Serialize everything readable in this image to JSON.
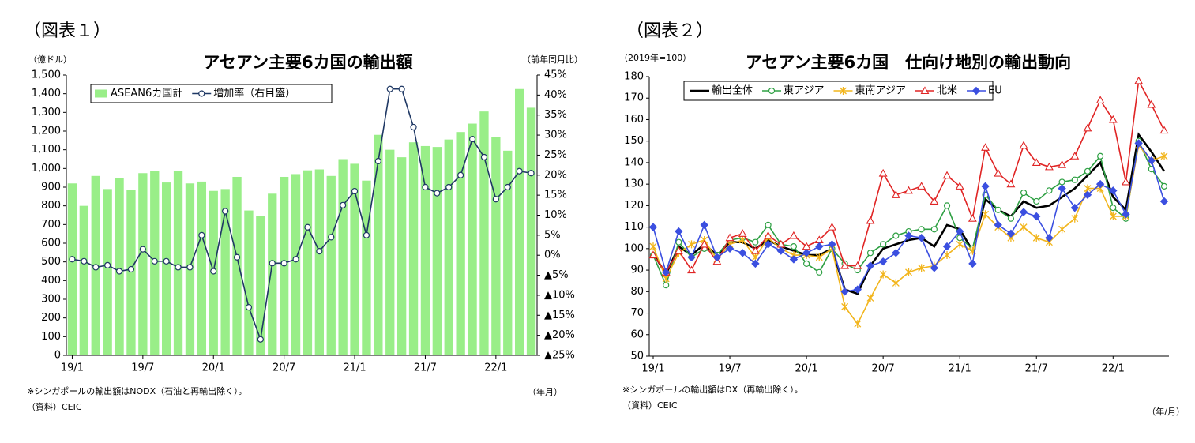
{
  "chart_data": [
    {
      "type": "combo",
      "figure_label": "（図表１）",
      "title": "アセアン主要6カ国の輸出額",
      "y_label": "（億ドル）",
      "y2_label": "（前年同月比）",
      "x_label": "（年月）",
      "notes": "※シンガポールの輸出額はNODX（石油と再輸出除く）。",
      "source": "（資料）CEIC",
      "grid": false,
      "legend": "top-left",
      "categories": [
        "19/1",
        null,
        null,
        null,
        null,
        null,
        "19/7",
        null,
        null,
        null,
        null,
        null,
        "20/1",
        null,
        null,
        null,
        null,
        null,
        "20/7",
        null,
        null,
        null,
        null,
        null,
        "21/1",
        null,
        null,
        null,
        null,
        null,
        "21/7",
        null,
        null,
        null,
        null,
        null,
        "22/1",
        null,
        null,
        null
      ],
      "ylim": [
        0,
        1500
      ],
      "yticks": [
        0,
        100,
        200,
        300,
        400,
        500,
        600,
        700,
        800,
        900,
        {
          "value": 1000,
          "label": "1,000"
        },
        {
          "value": 1100,
          "label": "1,100"
        },
        {
          "value": 1200,
          "label": "1,200"
        },
        {
          "value": 1300,
          "label": "1,300"
        },
        {
          "value": 1400,
          "label": "1,400"
        },
        {
          "value": 1500,
          "label": "1,500"
        }
      ],
      "y2lim": [
        -25,
        45
      ],
      "y2ticks": [
        {
          "value": -25,
          "label": "▲25%"
        },
        {
          "value": -20,
          "label": "▲20%"
        },
        {
          "value": -15,
          "label": "▲15%"
        },
        {
          "value": -10,
          "label": "▲10%"
        },
        {
          "value": -5,
          "label": "▲5%"
        },
        {
          "value": 0,
          "label": "0%"
        },
        {
          "value": 5,
          "label": "5%"
        },
        {
          "value": 10,
          "label": "10%"
        },
        {
          "value": 15,
          "label": "15%"
        },
        {
          "value": 20,
          "label": "20%"
        },
        {
          "value": 25,
          "label": "25%"
        },
        {
          "value": 30,
          "label": "30%"
        },
        {
          "value": 35,
          "label": "35%"
        },
        {
          "value": 40,
          "label": "40%"
        },
        {
          "value": 45,
          "label": "45%"
        }
      ],
      "series": [
        {
          "name": "ASEAN6カ国計",
          "type": "bar",
          "color": "#99ee88",
          "values": [
            920,
            800,
            960,
            890,
            950,
            885,
            975,
            985,
            925,
            985,
            920,
            930,
            880,
            890,
            955,
            775,
            745,
            865,
            955,
            970,
            990,
            995,
            960,
            1050,
            1025,
            935,
            1180,
            1100,
            1060,
            1140,
            1120,
            1115,
            1155,
            1195,
            1240,
            1305,
            1170,
            1095,
            1425,
            1325
          ]
        },
        {
          "name": "増加率（右目盛）",
          "type": "line",
          "axis": "y2",
          "color": "#1f3864",
          "marker": "circle",
          "values": [
            -1,
            -1.5,
            -3,
            -2.5,
            -4,
            -3.5,
            1.5,
            -1.5,
            -1.5,
            -3,
            -3,
            5,
            -4,
            11,
            -0.5,
            -13,
            -21,
            -2,
            -2,
            -1,
            7,
            1,
            4.5,
            12.5,
            16,
            5,
            23.5,
            41.5,
            41.5,
            32,
            17,
            15.5,
            17,
            20,
            29,
            24.5,
            14,
            17,
            21,
            20.5
          ]
        }
      ]
    },
    {
      "type": "line",
      "figure_label": "（図表２）",
      "title": "アセアン主要6カ国　仕向け地別の輸出動向",
      "y_label": "（2019年=100）",
      "x_label": "（年/月）",
      "notes": "※シンガポールの輸出額はDX（再輸出除く）。",
      "source": "（資料）CEIC",
      "grid": false,
      "legend": "top-left",
      "categories": [
        "19/1",
        null,
        null,
        null,
        null,
        null,
        "19/7",
        null,
        null,
        null,
        null,
        null,
        "20/1",
        null,
        null,
        null,
        null,
        null,
        "20/7",
        null,
        null,
        null,
        null,
        null,
        "21/1",
        null,
        null,
        null,
        null,
        null,
        "21/7",
        null,
        null,
        null,
        null,
        null,
        "22/1",
        null,
        null,
        null,
        null
      ],
      "ylim": [
        50,
        180
      ],
      "yticks": [
        50,
        60,
        70,
        80,
        90,
        100,
        110,
        120,
        130,
        140,
        150,
        160,
        170,
        180
      ],
      "series": [
        {
          "name": "輸出全体",
          "color": "#000000",
          "marker": "none",
          "values": [
            98,
            88,
            101,
            97,
            102,
            97,
            103,
            103,
            100,
            104,
            101,
            99,
            97,
            97,
            100,
            81,
            79,
            92,
            100,
            102,
            104,
            105,
            101,
            111,
            109,
            99,
            123,
            118,
            115,
            122,
            119,
            120,
            124,
            128,
            134,
            140,
            124,
            118,
            153,
            145,
            136
          ]
        },
        {
          "name": "東アジア",
          "color": "#2ea043",
          "marker": "circle",
          "values": [
            97,
            83,
            103,
            96,
            100,
            97,
            104,
            105,
            103,
            111,
            102,
            101,
            93,
            89,
            100,
            93,
            90,
            98,
            102,
            106,
            108,
            109,
            109,
            120,
            105,
            100,
            125,
            118,
            114,
            126,
            122,
            127,
            131,
            132,
            136,
            143,
            119,
            114,
            150,
            137,
            129
          ]
        },
        {
          "name": "東南アジア",
          "color": "#f2b51c",
          "marker": "star",
          "values": [
            101,
            86,
            98,
            102,
            104,
            95,
            102,
            104,
            96,
            105,
            100,
            97,
            97,
            96,
            100,
            73,
            65,
            77,
            88,
            84,
            89,
            91,
            92,
            97,
            102,
            99,
            116,
            110,
            105,
            110,
            105,
            103,
            109,
            114,
            128,
            128,
            115,
            115,
            148,
            141,
            143
          ]
        },
        {
          "name": "北米",
          "color": "#e02424",
          "marker": "triangle",
          "values": [
            97,
            89,
            99,
            90,
            102,
            94,
            105,
            107,
            99,
            106,
            102,
            106,
            101,
            104,
            110,
            92,
            92,
            113,
            135,
            125,
            127,
            129,
            122,
            134,
            129,
            114,
            147,
            135,
            130,
            148,
            140,
            138,
            139,
            143,
            156,
            169,
            160,
            131,
            178,
            167,
            155
          ]
        },
        {
          "name": "EU",
          "color": "#3b4fe0",
          "marker": "diamond",
          "values": [
            110,
            89,
            108,
            96,
            111,
            96,
            100,
            98,
            93,
            102,
            99,
            95,
            98,
            101,
            102,
            80,
            81,
            92,
            94,
            98,
            106,
            105,
            91,
            101,
            108,
            93,
            129,
            111,
            107,
            117,
            115,
            105,
            128,
            119,
            125,
            130,
            127,
            116,
            149,
            141,
            122
          ]
        }
      ]
    }
  ]
}
